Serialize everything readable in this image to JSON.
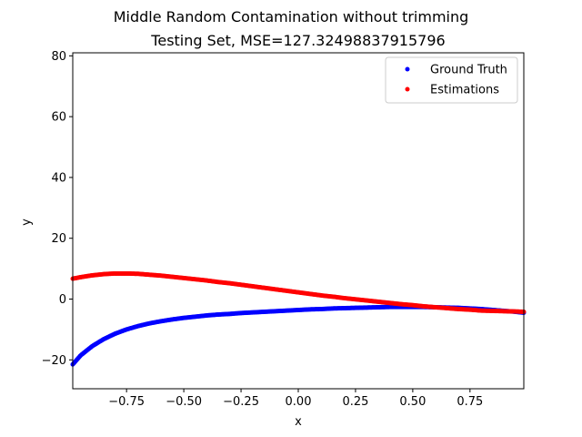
{
  "chart_data": {
    "type": "scatter",
    "title": "Middle Random Contamination without trimming",
    "subtitle": "Testing Set, MSE=127.32498837915796",
    "xlabel": "x",
    "ylabel": "y",
    "xlim": [
      -0.985,
      0.985
    ],
    "ylim": [
      -29.5,
      81
    ],
    "xticks": [
      -0.75,
      -0.5,
      -0.25,
      0.0,
      0.25,
      0.5,
      0.75
    ],
    "xtick_labels": [
      "−0.75",
      "−0.50",
      "−0.25",
      "0.00",
      "0.25",
      "0.50",
      "0.75"
    ],
    "yticks": [
      -20,
      0,
      20,
      40,
      60,
      80
    ],
    "ytick_labels": [
      "−20",
      "0",
      "20",
      "40",
      "60",
      "80"
    ],
    "grid": false,
    "legend_position": "top-right",
    "series": [
      {
        "name": "Ground Truth",
        "color": "#0000ff",
        "x": [
          -0.985,
          -0.95,
          -0.9,
          -0.85,
          -0.8,
          -0.75,
          -0.7,
          -0.65,
          -0.6,
          -0.55,
          -0.5,
          -0.45,
          -0.4,
          -0.35,
          -0.3,
          -0.25,
          -0.2,
          -0.15,
          -0.1,
          -0.05,
          0.0,
          0.05,
          0.1,
          0.15,
          0.2,
          0.25,
          0.3,
          0.35,
          0.4,
          0.45,
          0.5,
          0.55,
          0.6,
          0.65,
          0.7,
          0.75,
          0.8,
          0.85,
          0.9,
          0.95,
          0.985
        ],
        "y": [
          -21.5,
          -18.5,
          -15.5,
          -13.2,
          -11.4,
          -10.0,
          -8.9,
          -8.0,
          -7.3,
          -6.7,
          -6.2,
          -5.8,
          -5.4,
          -5.1,
          -4.9,
          -4.6,
          -4.4,
          -4.2,
          -4.0,
          -3.8,
          -3.6,
          -3.4,
          -3.3,
          -3.1,
          -3.0,
          -2.9,
          -2.8,
          -2.7,
          -2.6,
          -2.6,
          -2.6,
          -2.6,
          -2.7,
          -2.8,
          -2.9,
          -3.1,
          -3.3,
          -3.6,
          -3.9,
          -4.2,
          -4.5
        ]
      },
      {
        "name": "Estimations",
        "color": "#ff0000",
        "x": [
          -0.985,
          -0.95,
          -0.9,
          -0.85,
          -0.8,
          -0.75,
          -0.7,
          -0.65,
          -0.6,
          -0.55,
          -0.5,
          -0.45,
          -0.4,
          -0.35,
          -0.3,
          -0.25,
          -0.2,
          -0.15,
          -0.1,
          -0.05,
          0.0,
          0.05,
          0.1,
          0.15,
          0.2,
          0.25,
          0.3,
          0.35,
          0.4,
          0.45,
          0.5,
          0.55,
          0.6,
          0.65,
          0.7,
          0.75,
          0.8,
          0.85,
          0.9,
          0.95,
          0.985
        ],
        "y": [
          6.7,
          7.2,
          7.8,
          8.2,
          8.4,
          8.4,
          8.3,
          8.0,
          7.7,
          7.3,
          6.9,
          6.5,
          6.1,
          5.6,
          5.2,
          4.7,
          4.2,
          3.7,
          3.2,
          2.7,
          2.2,
          1.7,
          1.2,
          0.8,
          0.3,
          -0.1,
          -0.5,
          -0.9,
          -1.3,
          -1.7,
          -2.0,
          -2.4,
          -2.7,
          -3.0,
          -3.3,
          -3.5,
          -3.8,
          -3.9,
          -4.0,
          -4.1,
          -4.2
        ]
      }
    ]
  }
}
